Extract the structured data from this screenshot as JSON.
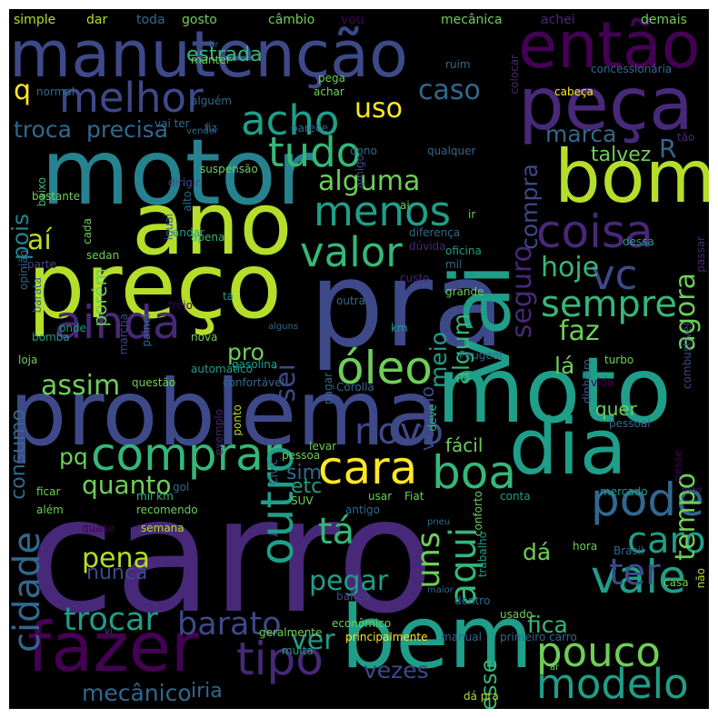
{
  "title": "Word cloud",
  "background": "#000000",
  "palette": {
    "p1": "#440154",
    "p2": "#482878",
    "p3": "#3e4989",
    "p4": "#31688e",
    "p5": "#26828e",
    "p6": "#1f9e89",
    "p7": "#35b779",
    "p8": "#6ece58",
    "p9": "#b5de2b",
    "p10": "#fde725"
  },
  "words": [
    "carro",
    "pra",
    "preço",
    "problema",
    "motor",
    "moto",
    "ano",
    "bem",
    "fazer",
    "vai",
    "manutenção",
    "então",
    "peça",
    "bom",
    "dia",
    "comprar",
    "cara",
    "boa",
    "ainda",
    "tipo",
    "pode",
    "óleo",
    "coisa",
    "vale",
    "outro",
    "melhor",
    "acho",
    "tudo",
    "menos",
    "valor",
    "modelo",
    "pouco",
    "sempre",
    "vc",
    "ter",
    "caro",
    "cidade",
    "aqui",
    "novo",
    "tá",
    "faz",
    "hoje",
    "trocar",
    "barato",
    "uns",
    "ver",
    "pegar",
    "tempo",
    "agora",
    "seguro",
    "alguma",
    "aí",
    "uso",
    "caso",
    "assim",
    "sei",
    "pena",
    "quanto",
    "q",
    "troca",
    "precisa",
    "compra",
    "marca",
    "talvez",
    "R",
    "estrada",
    "pois",
    "meio",
    "algum",
    "lá",
    "pro",
    "veículo",
    "fica",
    "vezes",
    "desse",
    "dá",
    "iria",
    "mecânico",
    "nunca",
    "quer",
    "fácil",
    "pq",
    "sim",
    "etc",
    "consumo",
    "porém",
    "simple",
    "dar",
    "toda",
    "gosto",
    "câmbio",
    "vou",
    "mecânica",
    "achei",
    "demais",
    "br",
    "normal",
    "manter",
    "pega",
    "ruim",
    "concessionária",
    "alguém",
    "achar",
    "colocar",
    "vai ter",
    "cabeça",
    "vender",
    "fiz",
    "parece",
    "dono",
    "qualquer",
    "tão",
    "baixo",
    "alto",
    "suspensão",
    "amigo",
    "bastante",
    "ai",
    "dirigir",
    "cada",
    "ir",
    "sedan",
    "igual",
    "andar",
    "diferença",
    "passar",
    "apena",
    "dúvida",
    "oficina",
    "opinião",
    "mil",
    "dessa",
    "parte",
    "barata",
    "ta",
    "custo",
    "marcha",
    "painel",
    "freio",
    "outra",
    "grande",
    "alguns",
    "km",
    "turbo",
    "combustível",
    "bomba",
    "onde",
    "nova",
    "loja",
    "Peugeot",
    "questão",
    "automático",
    "gasolina",
    "confortável",
    "ponto",
    "pagar",
    "Corolla",
    "deve",
    "dinheiro",
    "pessoal",
    "exemplo",
    "vida",
    "pessoa",
    "levar",
    "nesse",
    "Civic",
    "mão",
    "ficar",
    "além",
    "mil km",
    "gol",
    "SUV",
    "usar",
    "Fiat",
    "conta",
    "mercado",
    "recomendo",
    "antigo",
    "pneu",
    "conforto",
    "quase",
    "semana",
    "trabalho",
    "hora",
    "Brasil",
    "casa",
    "maior",
    "não",
    "econômico",
    "banco",
    "dentro",
    "usado",
    "geralmente",
    "principalmente",
    "manual",
    "primeiro carro",
    "muita",
    "vi",
    "ar",
    "dá pra"
  ]
}
